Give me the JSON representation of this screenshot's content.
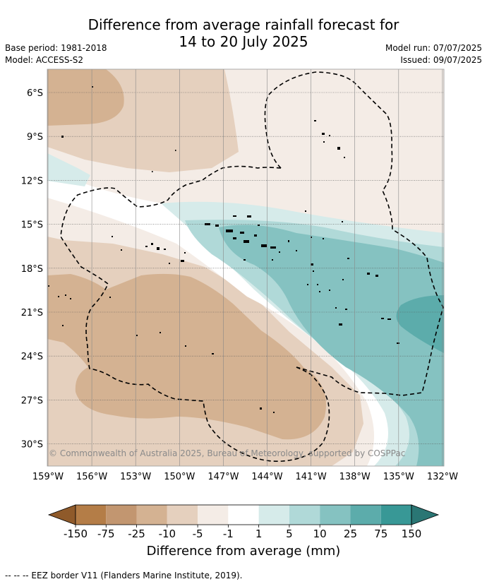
{
  "header": {
    "title_line1": "Difference from average rainfall forecast for",
    "title_line2": "14 to 20 July 2025",
    "base_period": "Base period: 1981-2018",
    "model": "Model: ACCESS-S2",
    "model_run": "Model run: 07/07/2025",
    "issued": "Issued: 09/07/2025"
  },
  "map": {
    "lat_labels": [
      "6°S",
      "9°S",
      "12°S",
      "15°S",
      "18°S",
      "21°S",
      "24°S",
      "27°S",
      "30°S"
    ],
    "lon_labels": [
      "159°W",
      "156°W",
      "153°W",
      "150°W",
      "147°W",
      "144°W",
      "141°W",
      "138°W",
      "135°W",
      "132°W"
    ],
    "copyright": "© Commonwealth of Australia 2025, Bureau of Meteorology, supported by COSPPac"
  },
  "colorbar": {
    "ticks": [
      "-150",
      "-75",
      "-25",
      "-10",
      "-5",
      "-1",
      "1",
      "5",
      "10",
      "25",
      "75",
      "150"
    ],
    "colors": [
      "#8f5a2a",
      "#b47d47",
      "#c29670",
      "#d4b292",
      "#e5d0be",
      "#f4ece6",
      "#ffffff",
      "#d6ebea",
      "#b0d9d8",
      "#85c2c1",
      "#5cacab",
      "#389896",
      "#2a7674"
    ],
    "title": "Difference from average (mm)"
  },
  "footer": {
    "legend_text": "--  --  -- EEZ border V11 (Flanders Marine Institute, 2019)."
  }
}
